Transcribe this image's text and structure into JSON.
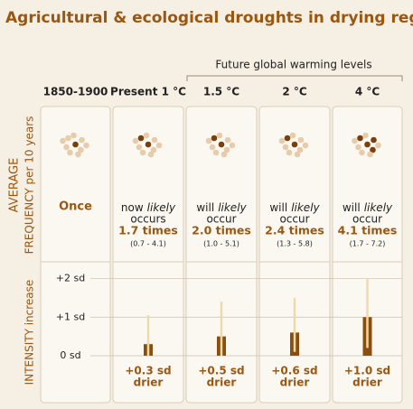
{
  "title": "Agricultural & ecological droughts in drying regions",
  "future_label": "Future global warming levels",
  "frequency_axis": [
    "AVERAGE",
    "FREQUENCY per 10 years"
  ],
  "intensity_axis": "INTENSITY increase",
  "intensity_ylim": [
    -0.6,
    2.2
  ],
  "intensity_yticks": [
    {
      "value": 2,
      "label": "+2 sd"
    },
    {
      "value": 1,
      "label": "+1 sd"
    },
    {
      "value": 0,
      "label": "0 sd"
    }
  ],
  "columns": [
    {
      "label": "1850-1900",
      "dark_dots": 1,
      "times": "Once"
    },
    {
      "label": "Present 1 °C",
      "dark_dots": 2,
      "prefix": "now",
      "likely": "likely",
      "verb": "occurs",
      "times": "1.7 times",
      "range": "(0.7 - 4.1)",
      "intensity": 0.3,
      "intensity_range": [
        0,
        1.05
      ],
      "intensity_label": "+0.3 sd",
      "drier": "drier"
    },
    {
      "label": "1.5 °C",
      "dark_dots": 2,
      "prefix": "will",
      "likely": "likely",
      "verb": "occur",
      "times": "2.0 times",
      "range": "(1.0 - 5.1)",
      "intensity": 0.5,
      "intensity_range": [
        0,
        1.4
      ],
      "intensity_label": "+0.5 sd",
      "drier": "drier"
    },
    {
      "label": "2 °C",
      "dark_dots": 2,
      "prefix": "will",
      "likely": "likely",
      "verb": "occur",
      "times": "2.4 times",
      "range": "(1.3 - 5.8)",
      "intensity": 0.6,
      "intensity_range": [
        0.1,
        1.5
      ],
      "intensity_label": "+0.6 sd",
      "drier": "drier"
    },
    {
      "label": "4 °C",
      "dark_dots": 4,
      "prefix": "will",
      "likely": "likely",
      "verb": "occur",
      "times": "4.1 times",
      "range": "(1.7 - 7.2)",
      "intensity": 1.0,
      "intensity_range": [
        0.2,
        2.0
      ],
      "intensity_label": "+1.0 sd",
      "drier": "drier"
    }
  ]
}
